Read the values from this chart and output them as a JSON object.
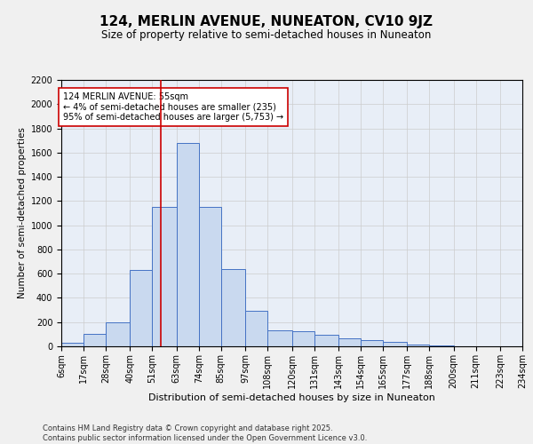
{
  "title": "124, MERLIN AVENUE, NUNEATON, CV10 9JZ",
  "subtitle": "Size of property relative to semi-detached houses in Nuneaton",
  "xlabel": "Distribution of semi-detached houses by size in Nuneaton",
  "ylabel": "Number of semi-detached properties",
  "footer_line1": "Contains HM Land Registry data © Crown copyright and database right 2025.",
  "footer_line2": "Contains public sector information licensed under the Open Government Licence v3.0.",
  "annotation_title": "124 MERLIN AVENUE: 55sqm",
  "annotation_line1": "← 4% of semi-detached houses are smaller (235)",
  "annotation_line2": "95% of semi-detached houses are larger (5,753) →",
  "property_size": 55,
  "bin_edges": [
    6,
    17,
    28,
    40,
    51,
    63,
    74,
    85,
    97,
    108,
    120,
    131,
    143,
    154,
    165,
    177,
    188,
    200,
    211,
    223,
    234
  ],
  "bar_heights": [
    30,
    100,
    200,
    630,
    1150,
    1680,
    1150,
    640,
    290,
    130,
    125,
    95,
    65,
    50,
    35,
    15,
    10,
    2,
    0,
    2
  ],
  "bar_color": "#c9d9ef",
  "bar_edge_color": "#4472c4",
  "vline_color": "#cc0000",
  "vline_x": 55,
  "ylim": [
    0,
    2200
  ],
  "yticks": [
    0,
    200,
    400,
    600,
    800,
    1000,
    1200,
    1400,
    1600,
    1800,
    2000,
    2200
  ],
  "grid_color": "#cccccc",
  "bg_color": "#e8eef7",
  "fig_bg_color": "#f0f0f0",
  "title_fontsize": 11,
  "subtitle_fontsize": 8.5,
  "annotation_fontsize": 7,
  "tick_label_fontsize": 7,
  "ylabel_fontsize": 7.5,
  "xlabel_fontsize": 8
}
